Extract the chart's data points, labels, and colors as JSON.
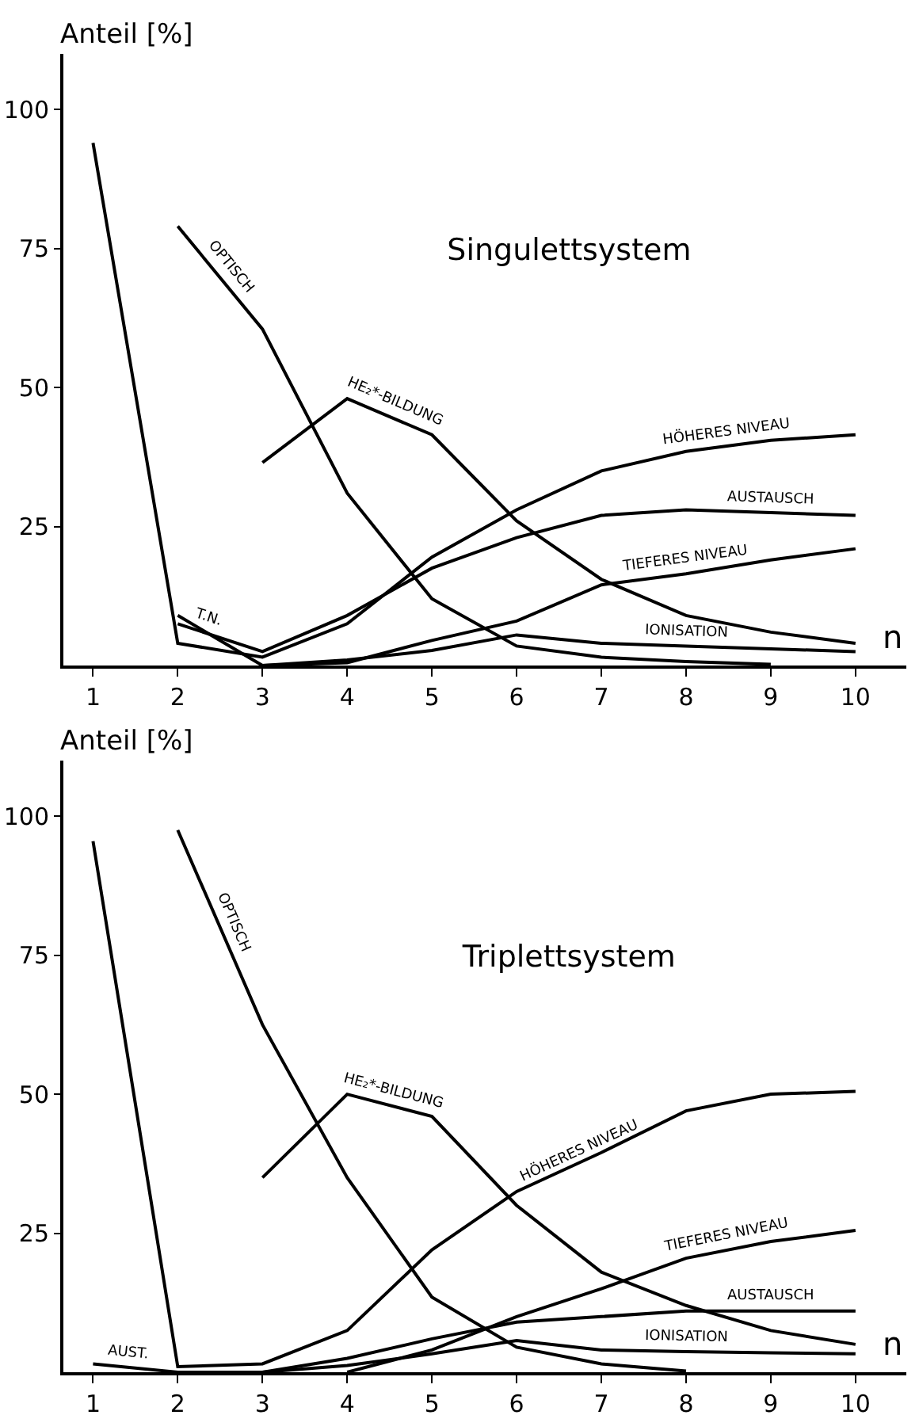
{
  "chart_data": [
    {
      "type": "line",
      "title": "Singulettsystem",
      "xlabel": "n",
      "ylabel": "Anteil [%]",
      "x": [
        1,
        2,
        3,
        4,
        5,
        6,
        7,
        8,
        9,
        10
      ],
      "xlim": [
        0.65,
        10.6
      ],
      "xticks": [
        1,
        2,
        3,
        4,
        5,
        6,
        7,
        8,
        9,
        10
      ],
      "ylim": [
        0,
        110
      ],
      "yticks": [
        25,
        50,
        75,
        100
      ],
      "marker": "none",
      "line_style": "solid",
      "series": [
        {
          "color": "#000000",
          "values": [
            94,
            4,
            1.5,
            7.5,
            19.5,
            28,
            35,
            38.5,
            40.5,
            41.5
          ]
        },
        {
          "color": "#000000",
          "values": [
            null,
            7.5,
            2.5,
            9,
            17.5,
            23,
            27,
            28,
            27.5,
            27
          ]
        },
        {
          "color": "#000000",
          "values": [
            null,
            9,
            0,
            0.5,
            4.5,
            8,
            14.5,
            16.5,
            19,
            21
          ]
        },
        {
          "color": "#000000",
          "values": [
            null,
            79,
            60.5,
            31,
            12,
            3.5,
            1.5,
            0.7,
            0.2,
            null
          ]
        },
        {
          "color": "#000000",
          "values": [
            null,
            null,
            36.5,
            48,
            41.5,
            26,
            15.5,
            9,
            6,
            4
          ]
        },
        {
          "color": "#000000",
          "values": [
            null,
            null,
            0,
            1,
            2.7,
            5.5,
            4,
            3.5,
            3,
            2.5
          ]
        }
      ],
      "annotations": [
        {
          "text": "OPTISCH",
          "x": 2.5,
          "y": 70
        },
        {
          "text": "HE₂*-BILDUNG",
          "x": 4.5,
          "y": 45
        },
        {
          "text": "HÖHERES NIVEAU",
          "x": 8.5,
          "y": 39.5
        },
        {
          "text": "AUSTAUSCH",
          "x": 9,
          "y": 27.5
        },
        {
          "text": "TIEFERES NIVEAU",
          "x": 8,
          "y": 16.5
        },
        {
          "text": "IONISATION",
          "x": 8,
          "y": 3.5
        },
        {
          "text": "T.N.",
          "x": 2.3,
          "y": 6
        }
      ]
    },
    {
      "type": "line",
      "title": "Triplettsystem",
      "xlabel": "n",
      "ylabel": "Anteil [%]",
      "x": [
        1,
        2,
        3,
        4,
        5,
        6,
        7,
        8,
        9,
        10
      ],
      "xlim": [
        0.65,
        10.6
      ],
      "xticks": [
        1,
        2,
        3,
        4,
        5,
        6,
        7,
        8,
        9,
        10
      ],
      "ylim": [
        0,
        110
      ],
      "yticks": [
        25,
        50,
        75,
        100
      ],
      "marker": "none",
      "line_style": "solid",
      "series": [
        {
          "color": "#000000",
          "values": [
            95.5,
            1,
            1.5,
            7.5,
            22,
            32.5,
            39.5,
            47,
            50,
            50.5
          ]
        },
        {
          "color": "#000000",
          "values": [
            null,
            97.5,
            62.5,
            35,
            13.5,
            4.5,
            1.5,
            0.2,
            null,
            null
          ]
        },
        {
          "color": "#000000",
          "values": [
            null,
            null,
            35,
            50,
            46,
            30,
            18,
            12,
            7.5,
            5
          ]
        },
        {
          "color": "#000000",
          "values": [
            null,
            null,
            null,
            0,
            4,
            10,
            15,
            20.5,
            23.5,
            25.5
          ]
        },
        {
          "color": "#000000",
          "values": [
            1.5,
            0,
            0,
            2.5,
            6,
            9,
            10,
            11,
            11,
            11
          ]
        },
        {
          "color": "#000000",
          "values": [
            null,
            null,
            0,
            1.2,
            3.3,
            5.7,
            4,
            3.7,
            3.5,
            3.3
          ]
        }
      ],
      "annotations": [
        {
          "text": "OPTISCH",
          "x": 2.5,
          "y": 80
        },
        {
          "text": "HE₂*-BILDUNG",
          "x": 4.5,
          "y": 48
        },
        {
          "text": "HÖHERES NIVEAU",
          "x": 6.8,
          "y": 37.5
        },
        {
          "text": "TIEFERES NIVEAU",
          "x": 8.5,
          "y": 22
        },
        {
          "text": "AUSTAUSCH",
          "x": 9,
          "y": 11
        },
        {
          "text": "IONISATION",
          "x": 8,
          "y": 3.7
        },
        {
          "text": "AUST.",
          "x": 1.4,
          "y": 1
        }
      ]
    }
  ]
}
